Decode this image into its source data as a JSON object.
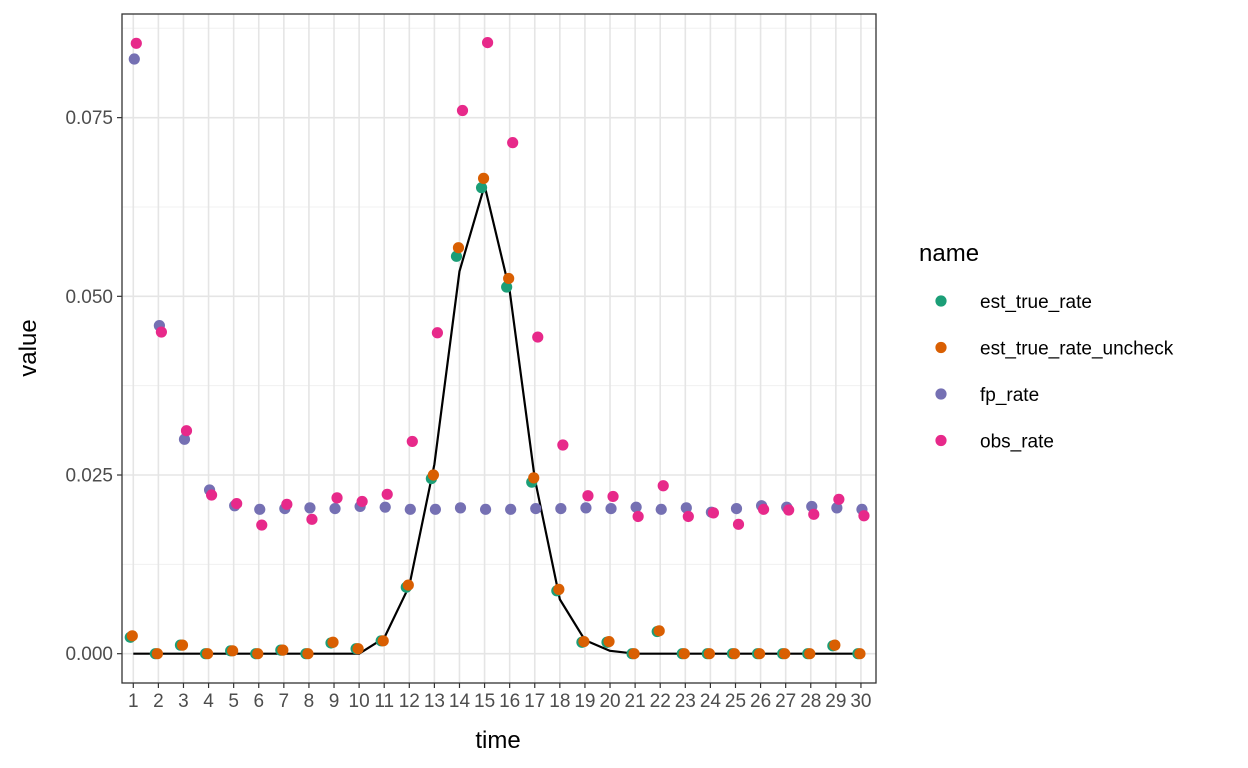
{
  "chart_data": {
    "type": "scatter",
    "xlabel": "time",
    "ylabel": "value",
    "x": [
      1,
      2,
      3,
      4,
      5,
      6,
      7,
      8,
      9,
      10,
      11,
      12,
      13,
      14,
      15,
      16,
      17,
      18,
      19,
      20,
      21,
      22,
      23,
      24,
      25,
      26,
      27,
      28,
      29,
      30
    ],
    "xlim": [
      0.55,
      30.6
    ],
    "ylim": [
      -0.0041,
      0.0895
    ],
    "y_ticks": [
      0.0,
      0.025,
      0.05,
      0.075
    ],
    "y_tick_labels": [
      "0.000",
      "0.025",
      "0.050",
      "0.075"
    ],
    "grid": true,
    "legend": {
      "title": "name",
      "position": "right"
    },
    "series": [
      {
        "name": "est_true_rate",
        "color": "#1B9E77",
        "x_offset": -0.12,
        "values": [
          0.0023,
          0.0,
          0.0012,
          0.0,
          0.0004,
          0.0,
          0.0005,
          0.0,
          0.0015,
          0.0007,
          0.0018,
          0.0093,
          0.0245,
          0.0556,
          0.0652,
          0.0513,
          0.024,
          0.0088,
          0.0016,
          0.0016,
          0.0,
          0.0031,
          0.0,
          0.0,
          0.0,
          0.0,
          0.0,
          0.0,
          0.0011,
          0.0
        ]
      },
      {
        "name": "est_true_rate_uncheck",
        "color": "#D95F02",
        "x_offset": -0.04,
        "values": [
          0.0025,
          0.0,
          0.0012,
          0.0,
          0.0004,
          0.0,
          0.0005,
          0.0,
          0.0016,
          0.0007,
          0.0018,
          0.0096,
          0.025,
          0.0568,
          0.0665,
          0.0525,
          0.0246,
          0.009,
          0.0017,
          0.0017,
          0.0,
          0.0032,
          0.0,
          0.0,
          0.0,
          0.0,
          0.0,
          0.0,
          0.0012,
          0.0
        ]
      },
      {
        "name": "fp_rate",
        "color": "#7570B3",
        "x_offset": 0.04,
        "values": [
          0.0832,
          0.0459,
          0.03,
          0.0229,
          0.0207,
          0.0202,
          0.0203,
          0.0204,
          0.0203,
          0.0206,
          0.0205,
          0.0202,
          0.0202,
          0.0204,
          0.0202,
          0.0202,
          0.0203,
          0.0203,
          0.0204,
          0.0203,
          0.0205,
          0.0202,
          0.0204,
          0.0198,
          0.0203,
          0.0207,
          0.0205,
          0.0206,
          0.0204,
          0.0202
        ]
      },
      {
        "name": "obs_rate",
        "color": "#E7298A",
        "x_offset": 0.12,
        "values": [
          0.0854,
          0.045,
          0.0312,
          0.0222,
          0.021,
          0.018,
          0.0209,
          0.0188,
          0.0218,
          0.0213,
          0.0223,
          0.0297,
          0.0449,
          0.076,
          0.0855,
          0.0715,
          0.0443,
          0.0292,
          0.0221,
          0.022,
          0.0192,
          0.0235,
          0.0192,
          0.0197,
          0.0181,
          0.0202,
          0.0201,
          0.0195,
          0.0216,
          0.0193
        ]
      }
    ],
    "line": {
      "color": "#000000",
      "values": [
        0.0,
        0.0,
        0.0,
        0.0,
        0.0,
        0.0,
        0.0,
        0.0,
        0.0,
        0.0,
        0.0022,
        0.0095,
        0.0265,
        0.0535,
        0.0655,
        0.0508,
        0.0245,
        0.0076,
        0.0019,
        0.0004,
        0.0,
        0.0,
        0.0,
        0.0,
        0.0,
        0.0,
        0.0,
        0.0,
        0.0,
        0.0
      ]
    }
  }
}
